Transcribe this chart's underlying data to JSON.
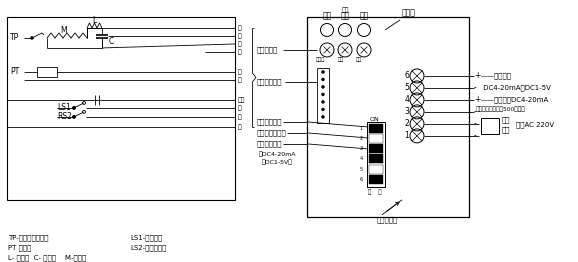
{
  "bg_color": "#ffffff",
  "lc": "#000000",
  "fl": 5.5,
  "fs": 5.0,
  "ft": 4.5,
  "wire_names": [
    "绿",
    "黑",
    "黄",
    "白",
    "蓝",
    "紫",
    "浅蓝",
    "橙",
    "灰",
    "红"
  ],
  "left_labels_mid": [
    "调整电位器",
    "内部接线插座",
    "正反动作选择",
    "断信号动作选择",
    "输入信号选择"
  ],
  "dc_label1": "（DC4-20mA",
  "dc_label2": "或DC1-5V）",
  "hdr_bao": "报警",
  "hdr_xin": "信号",
  "hdr_dian": "电源",
  "hdr_in": "输入",
  "hdr_zhi": "指示灯",
  "lbl_tiaoz": "调整电位器",
  "lbl_neibu": "内部接线插座",
  "lbl_zheng": "正反动作选择",
  "lbl_duan": "断信号动作选择",
  "lbl_input": "输入信号选择",
  "dip_labels": [
    "ON",
    "断    通"
  ],
  "term_nums": [
    "6",
    "5",
    "4",
    "3",
    "2",
    "1"
  ],
  "sublabels": [
    "调错位",
    "行位",
    "零位"
  ],
  "r1": "+ ——输入信号",
  "r2": "— DC4-20mA或DC1-5V",
  "r3": "+ ——输出信号DC4-20mA",
  "r4": "（接受端负载电阮500以下）",
  "r5": "—",
  "r6": "——  火线",
  "r7": "——  零线  电源AC 220V",
  "bot1a": "TP-电机内温度开关",
  "bot1b": "LS1-限位开关",
  "bot2a": "PT 电位器",
  "bot2b": "LS2-上限位开关",
  "bot3": "L- 扴流圈  C- 电容器    M-电动机",
  "duiwai": "对外接端子"
}
